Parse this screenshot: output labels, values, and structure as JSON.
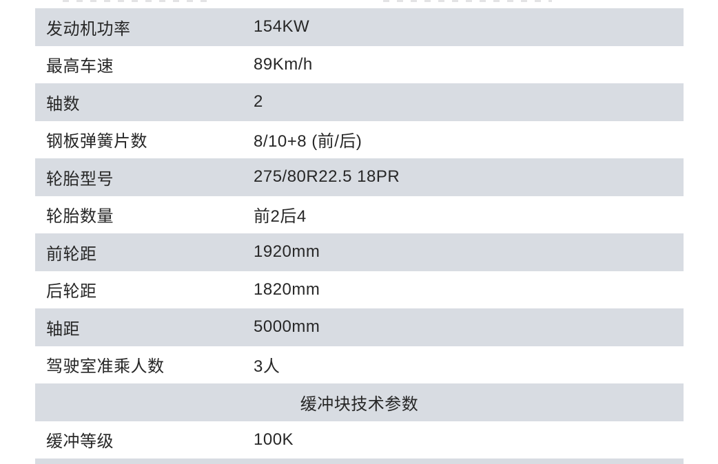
{
  "table": {
    "rows": [
      {
        "label": "发动机功率",
        "value": "154KW"
      },
      {
        "label": "最高车速",
        "value": "89Km/h"
      },
      {
        "label": "轴数",
        "value": "2"
      },
      {
        "label": "钢板弹簧片数",
        "value": "8/10+8 (前/后)"
      },
      {
        "label": "轮胎型号",
        "value": "275/80R22.5 18PR"
      },
      {
        "label": "轮胎数量",
        "value": "前2后4"
      },
      {
        "label": "前轮距",
        "value": "1920mm"
      },
      {
        "label": "后轮距",
        "value": "1820mm"
      },
      {
        "label": "轴距",
        "value": "5000mm"
      },
      {
        "label": "驾驶室准乘人数",
        "value": "3人"
      }
    ],
    "section_header": "缓冲块技术参数",
    "section_rows": [
      {
        "label": "缓冲等级",
        "value": "100K"
      }
    ]
  },
  "colors": {
    "row_alt_background": "#d8dce2",
    "row_background": "#ffffff",
    "text": "#272727"
  }
}
